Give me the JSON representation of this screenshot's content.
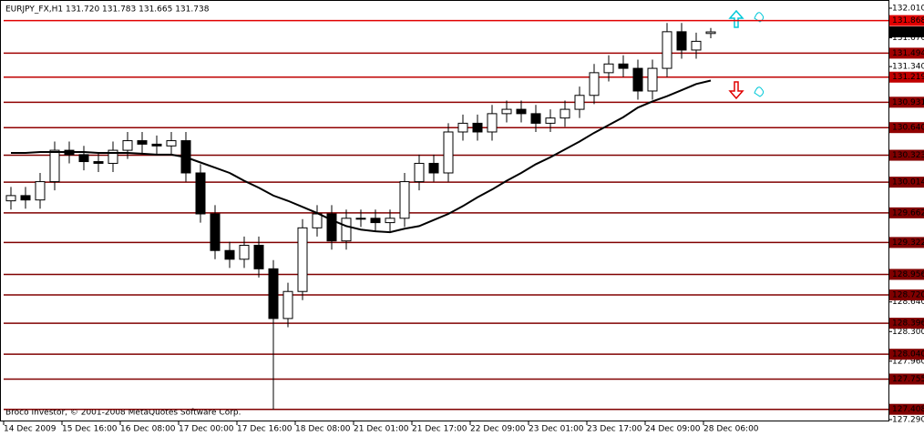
{
  "chart_data": {
    "type": "candlestick",
    "title": "EURJPY_FX,H1  131.720 131.783 131.665 131.738",
    "footer": "Broco Investor, © 2001-2008 MetaQuotes Software Corp.",
    "categories": [
      "14 Dec 2009",
      null,
      null,
      null,
      "15 Dec 16:00",
      null,
      null,
      null,
      "16 Dec 08:00",
      null,
      null,
      null,
      "17 Dec 00:00",
      null,
      null,
      null,
      "17 Dec 16:00",
      null,
      null,
      null,
      "18 Dec 08:00",
      null,
      null,
      null,
      "21 Dec 01:00",
      null,
      null,
      null,
      "21 Dec 17:00",
      null,
      null,
      null,
      "22 Dec 09:00",
      null,
      null,
      null,
      "23 Dec 01:00",
      null,
      null,
      null,
      "23 Dec 17:00",
      null,
      null,
      null,
      "24 Dec 09:00",
      null,
      null,
      null,
      "28 Dec 06:00"
    ],
    "open": [
      129.8,
      129.86,
      129.81,
      130.02,
      130.38,
      130.33,
      130.25,
      130.23,
      130.38,
      130.49,
      130.45,
      130.43,
      130.49,
      130.12,
      129.65,
      129.23,
      129.13,
      129.29,
      129.02,
      128.45,
      128.76,
      129.49,
      129.65,
      129.34,
      129.6,
      129.6,
      129.55,
      129.6,
      130.02,
      130.23,
      130.12,
      130.59,
      130.69,
      130.59,
      130.8,
      130.85,
      130.8,
      130.69,
      130.75,
      130.85,
      131.01,
      131.27,
      131.37,
      131.32,
      131.06,
      131.32,
      131.74,
      131.53,
      131.72
    ],
    "high": [
      129.96,
      129.96,
      130.12,
      130.48,
      130.48,
      130.43,
      130.35,
      130.48,
      130.59,
      130.59,
      130.55,
      130.59,
      130.59,
      130.22,
      129.75,
      129.33,
      129.39,
      129.39,
      129.12,
      128.86,
      129.59,
      129.75,
      129.75,
      129.7,
      129.7,
      129.7,
      129.7,
      130.12,
      130.33,
      130.33,
      130.69,
      130.79,
      130.79,
      130.9,
      130.95,
      130.95,
      130.9,
      130.85,
      130.95,
      131.11,
      131.37,
      131.47,
      131.47,
      131.42,
      131.42,
      131.84,
      131.84,
      131.73,
      131.783
    ],
    "low": [
      129.7,
      129.71,
      129.71,
      129.92,
      130.23,
      130.15,
      130.13,
      130.13,
      130.28,
      130.35,
      130.33,
      130.33,
      130.02,
      129.55,
      129.13,
      129.03,
      129.03,
      128.92,
      127.408,
      128.35,
      128.66,
      129.39,
      129.24,
      129.24,
      129.5,
      129.45,
      129.45,
      129.5,
      129.92,
      130.02,
      130.02,
      130.49,
      130.49,
      130.49,
      130.7,
      130.7,
      130.59,
      130.59,
      130.65,
      130.75,
      130.91,
      131.17,
      131.22,
      130.96,
      130.96,
      131.22,
      131.43,
      131.43,
      131.665
    ],
    "close": [
      129.86,
      129.81,
      130.02,
      130.38,
      130.33,
      130.25,
      130.23,
      130.38,
      130.49,
      130.45,
      130.43,
      130.49,
      130.12,
      129.65,
      129.23,
      129.13,
      129.29,
      129.02,
      128.45,
      128.76,
      129.49,
      129.65,
      129.34,
      129.6,
      129.6,
      129.55,
      129.6,
      130.02,
      130.23,
      130.12,
      130.59,
      130.69,
      130.59,
      130.8,
      130.85,
      130.8,
      130.69,
      130.75,
      130.85,
      131.01,
      131.27,
      131.37,
      131.32,
      131.06,
      131.32,
      131.74,
      131.53,
      131.63,
      131.738
    ],
    "ma": [
      130.35,
      130.35,
      130.36,
      130.36,
      130.36,
      130.36,
      130.35,
      130.35,
      130.35,
      130.34,
      130.33,
      130.33,
      130.3,
      130.24,
      130.18,
      130.12,
      130.03,
      129.95,
      129.86,
      129.8,
      129.73,
      129.66,
      129.58,
      129.51,
      129.47,
      129.45,
      129.44,
      129.48,
      129.51,
      129.58,
      129.65,
      129.74,
      129.84,
      129.93,
      130.03,
      130.12,
      130.22,
      130.3,
      130.39,
      130.48,
      130.58,
      130.67,
      130.76,
      130.87,
      130.94,
      131.0,
      131.07,
      131.14,
      131.18
    ],
    "ma_color": "#000000",
    "up_color": "#ffffff",
    "down_color": "#000000",
    "current_price": 131.738,
    "levels": [
      {
        "value": 131.868,
        "color": "#e00000"
      },
      {
        "value": 131.494,
        "color": "#a00000"
      },
      {
        "value": 131.219,
        "color": "#c00000"
      },
      {
        "value": 130.931,
        "color": "#900000"
      },
      {
        "value": 130.64,
        "label": "130.640",
        "color": "#900000"
      },
      {
        "value": 130.323,
        "color": "#800000"
      },
      {
        "value": 130.014,
        "color": "#800000"
      },
      {
        "value": 129.662,
        "color": "#800000"
      },
      {
        "value": 129.322,
        "color": "#800000"
      },
      {
        "value": 128.956,
        "color": "#800000"
      },
      {
        "value": 128.72,
        "label": "128.720",
        "color": "#800000"
      },
      {
        "value": 128.396,
        "color": "#800000"
      },
      {
        "value": 128.04,
        "label": "128.040",
        "color": "#800000"
      },
      {
        "value": 127.755,
        "color": "#800000"
      },
      {
        "value": 127.408,
        "color": "#800000"
      }
    ],
    "ylim": [
      127.29,
      132.01
    ],
    "yticks": [
      {
        "value": 127.29,
        "label": "127.290"
      },
      {
        "value": 127.96,
        "label": "127.960"
      },
      {
        "value": 128.3,
        "label": "128.300"
      },
      {
        "value": 128.64,
        "label": "128.640"
      },
      {
        "value": 131.34,
        "label": "131.340"
      },
      {
        "value": 131.67,
        "label": "131.670"
      },
      {
        "value": 132.01,
        "label": "132.010"
      }
    ]
  }
}
